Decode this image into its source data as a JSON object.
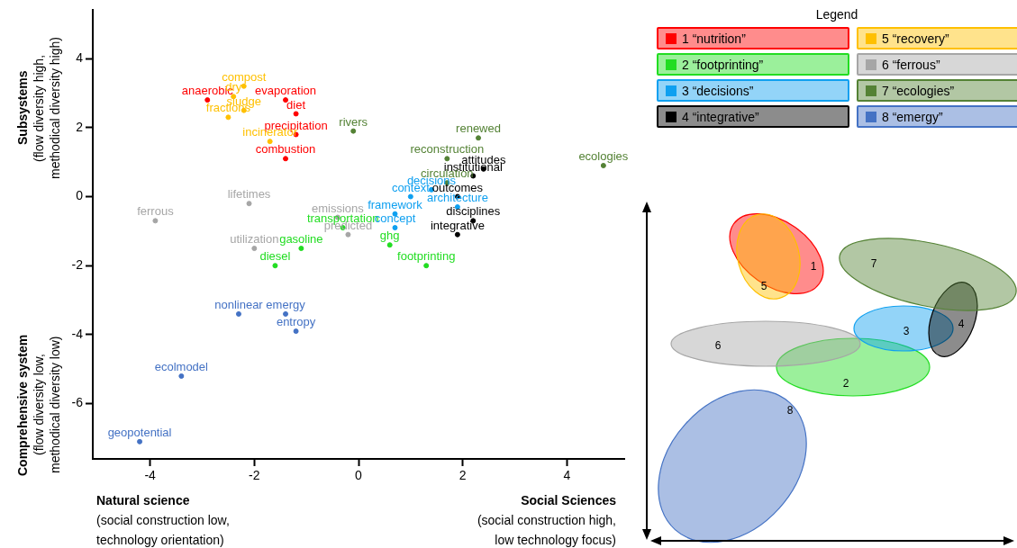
{
  "chart_data": [
    {
      "type": "scatter",
      "marker": "circle",
      "legend": "top right",
      "legend_title": "Legend",
      "xlim": [
        -5.1,
        5.1
      ],
      "ylim": [
        -7.6,
        5.4
      ],
      "xticks": [
        -4,
        -2,
        0,
        2,
        4
      ],
      "yticks": [
        -6,
        -4,
        -2,
        0,
        2,
        4
      ],
      "annotations": [
        "Subsystems\n(flow diversity high,\nmethodical diversity high)",
        "Comprehensive system\n(flow diversity low,\nmethodical diversity low)",
        "Natural science\n(social construction low,\ntechnology orientation)",
        "Social Sciences\n(social construction high,\nlow technology focus)"
      ],
      "series": [
        {
          "name": "1 “nutrition”",
          "color": "#ff0000",
          "x": [
            -2.9,
            -1.4,
            -1.2,
            -1.2,
            -1.4
          ],
          "values": [
            2.8,
            2.8,
            2.4,
            1.8,
            1.1
          ],
          "value_labels": [
            "anaerobic",
            "evaporation",
            "diet",
            "precipitation",
            "combustion"
          ]
        },
        {
          "name": "2 “footprinting”",
          "color": "#22dd22",
          "x": [
            -0.3,
            -1.1,
            0.6,
            -1.6,
            1.3
          ],
          "values": [
            -0.9,
            -1.5,
            -1.4,
            -2.0,
            -2.0
          ],
          "value_labels": [
            "transportation",
            "gasoline",
            "ghg",
            "diesel",
            "footprinting"
          ]
        },
        {
          "name": "3 “decisions”",
          "color": "#0fa0f0",
          "x": [
            1.4,
            1.0,
            1.9,
            0.7,
            0.7
          ],
          "values": [
            0.2,
            0.0,
            -0.3,
            -0.5,
            -0.9
          ],
          "value_labels": [
            "decisions",
            "context",
            "architecture",
            "framework",
            "concept"
          ]
        },
        {
          "name": "4 “integrative”",
          "color": "#000000",
          "x": [
            2.4,
            2.2,
            1.9,
            2.2,
            1.9
          ],
          "values": [
            0.8,
            0.6,
            0.0,
            -0.7,
            -1.1
          ],
          "value_labels": [
            "attitudes",
            "institutional",
            "outcomes",
            "disciplines",
            "integrative"
          ]
        },
        {
          "name": "5 “recovery”",
          "color": "#ffc000",
          "x": [
            -2.2,
            -2.4,
            -2.2,
            -2.5,
            -1.7
          ],
          "values": [
            3.2,
            2.9,
            2.5,
            2.3,
            1.6
          ],
          "value_labels": [
            "compost",
            "dry",
            "sludge",
            "fractions",
            "incinerator"
          ]
        },
        {
          "name": "6 “ferrous”",
          "color": "#a6a6a6",
          "x": [
            -2.1,
            -3.9,
            -0.4,
            -0.2,
            -2.0
          ],
          "values": [
            -0.2,
            -0.7,
            -0.6,
            -1.1,
            -1.5
          ],
          "value_labels": [
            "lifetimes",
            "ferrous",
            "emissions",
            "predicted",
            "utilization"
          ]
        },
        {
          "name": "7 “ecologies”",
          "color": "#548235",
          "x": [
            -0.1,
            2.3,
            1.7,
            4.7,
            1.7
          ],
          "values": [
            1.9,
            1.7,
            1.1,
            0.9,
            0.4
          ],
          "value_labels": [
            "rivers",
            "renewed",
            "reconstruction",
            "ecologies",
            "circulation"
          ]
        },
        {
          "name": "8 “emergy”",
          "color": "#4472c4",
          "x": [
            -2.3,
            -1.4,
            -1.2,
            -3.4,
            -4.2
          ],
          "values": [
            -3.4,
            -3.4,
            -3.9,
            -5.2,
            -7.1
          ],
          "value_labels": [
            "nonlinear",
            "emergy",
            "entropy",
            "ecolmodel",
            "geopotential"
          ]
        }
      ]
    },
    {
      "type": "other",
      "annotations": [
        "1",
        "2",
        "3",
        "4",
        "5",
        "6",
        "7",
        "8"
      ]
    }
  ]
}
